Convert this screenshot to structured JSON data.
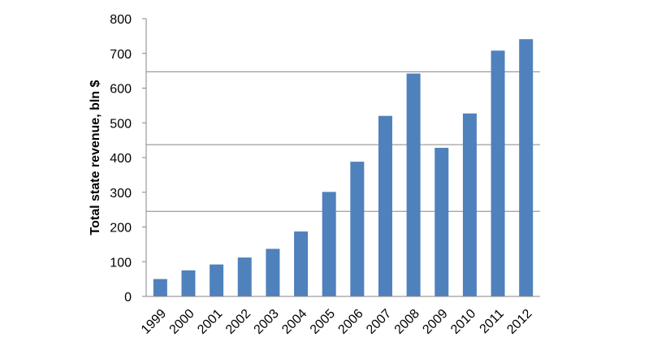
{
  "chart_data": {
    "type": "bar",
    "title": "",
    "xlabel": "",
    "ylabel": "Total state revenue, bln $",
    "categories": [
      "1999",
      "2000",
      "2001",
      "2002",
      "2003",
      "2004",
      "2005",
      "2006",
      "2007",
      "2008",
      "2009",
      "2010",
      "2011",
      "2012"
    ],
    "values": [
      50,
      75,
      92,
      112,
      137,
      187,
      301,
      388,
      520,
      642,
      428,
      527,
      708,
      741
    ],
    "ylim": [
      0,
      800
    ],
    "yticks": [
      "0",
      "100",
      "200",
      "300",
      "400",
      "500",
      "600",
      "700",
      "800"
    ],
    "grid": false,
    "legend": "none",
    "bar_color": "#4F81BD",
    "axis_color": "#868686",
    "horizontal_lines": [
      245,
      437,
      647
    ]
  }
}
